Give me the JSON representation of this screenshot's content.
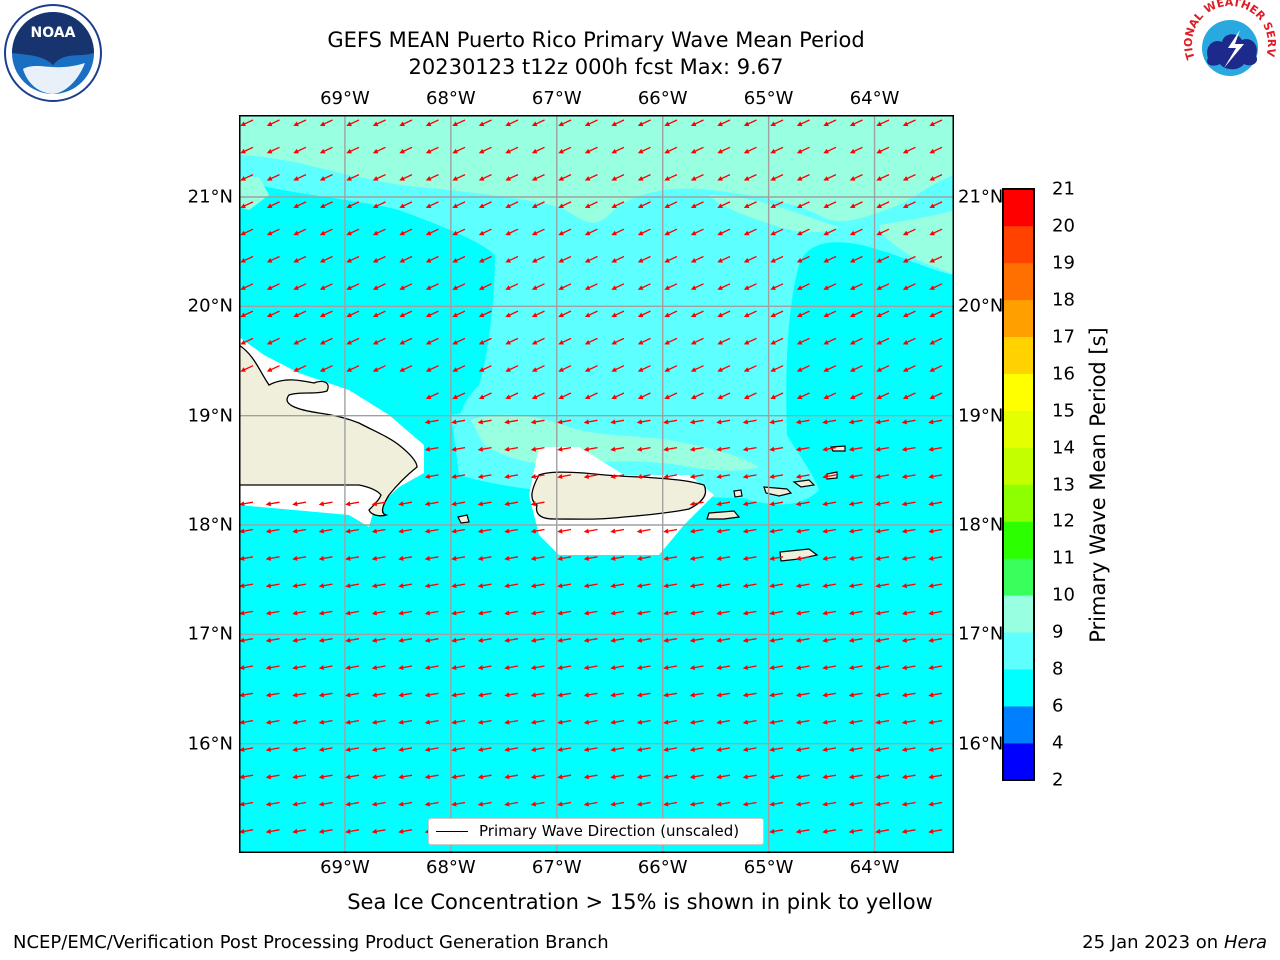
{
  "title_line1": "GEFS MEAN Puerto Rico Primary Wave Mean Period",
  "title_line2": "20230123 t12z 000h fcst   Max: 9.67",
  "lon_ticks": [
    {
      "label": "69°W",
      "lon": -69
    },
    {
      "label": "68°W",
      "lon": -68
    },
    {
      "label": "67°W",
      "lon": -67
    },
    {
      "label": "66°W",
      "lon": -66
    },
    {
      "label": "65°W",
      "lon": -65
    },
    {
      "label": "64°W",
      "lon": -64
    }
  ],
  "lat_ticks": [
    {
      "label": "21°N",
      "lat": 21
    },
    {
      "label": "20°N",
      "lat": 20
    },
    {
      "label": "19°N",
      "lat": 19
    },
    {
      "label": "18°N",
      "lat": 18
    },
    {
      "label": "17°N",
      "lat": 17
    },
    {
      "label": "16°N",
      "lat": 16
    }
  ],
  "map_extent": {
    "lon_min": -70.0,
    "lon_max": -63.25,
    "lat_min": 15.0,
    "lat_max": 21.75
  },
  "colorbar": {
    "title": "Primary Wave Mean Period [s]",
    "levels": [
      "2",
      "4",
      "6",
      "8",
      "9",
      "10",
      "11",
      "12",
      "13",
      "14",
      "15",
      "16",
      "17",
      "18",
      "19",
      "20",
      "21"
    ],
    "colors": [
      "#0000ff",
      "#0080ff",
      "#00ffff",
      "#5effff",
      "#98ffe0",
      "#39ff5c",
      "#2bff00",
      "#8dff00",
      "#c4ff00",
      "#e4ff00",
      "#ffff00",
      "#ffd200",
      "#ffa000",
      "#ff7000",
      "#ff4200",
      "#ff0000"
    ]
  },
  "field_colors": {
    "period_6_8": "#00ffff",
    "period_8_9": "#5effff",
    "period_9_10": "#98ffe0",
    "land": "#efefdb",
    "arrow": "#ff0000"
  },
  "legend_label": "Primary Wave Direction (unscaled)",
  "note": "Sea Ice Concentration > 15% is shown in pink to yellow",
  "footer_left": "NCEP/EMC/Verification Post Processing Product Generation Branch",
  "footer_date": "25 Jan 2023 on ",
  "footer_host": "Hera",
  "logos": {
    "left": "noaa-logo",
    "right": "nws-logo",
    "left_text": "NOAA",
    "right_text": "NATIONAL WEATHER SERVICE"
  }
}
